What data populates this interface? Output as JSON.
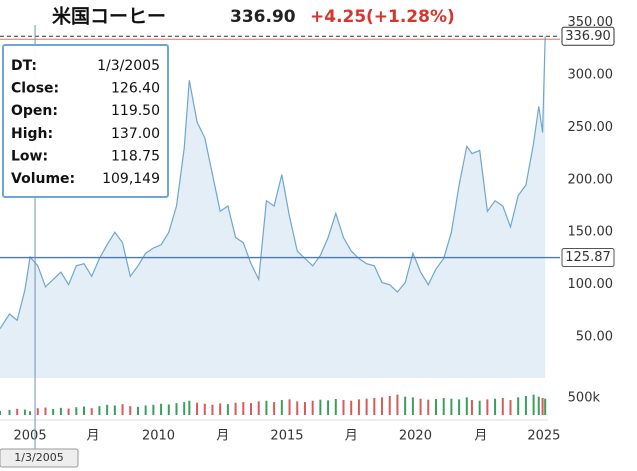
{
  "chart_data": {
    "type": "line",
    "title": "米国コーヒー",
    "last_price": {
      "value": 336.9,
      "label": "336.90"
    },
    "change": "+4.25",
    "change_pct": "(+1.28%)",
    "x": [
      2003.83,
      2004.2,
      2004.5,
      2004.8,
      2005.0,
      2005.3,
      2005.6,
      2005.9,
      2006.2,
      2006.5,
      2006.8,
      2007.1,
      2007.4,
      2007.7,
      2008.0,
      2008.3,
      2008.6,
      2008.9,
      2009.2,
      2009.5,
      2009.8,
      2010.1,
      2010.4,
      2010.7,
      2011.0,
      2011.2,
      2011.5,
      2011.8,
      2012.1,
      2012.4,
      2012.7,
      2013.0,
      2013.3,
      2013.6,
      2013.9,
      2014.2,
      2014.5,
      2014.8,
      2015.1,
      2015.4,
      2015.7,
      2016.0,
      2016.3,
      2016.6,
      2016.9,
      2017.2,
      2017.5,
      2017.8,
      2018.1,
      2018.4,
      2018.7,
      2019.0,
      2019.3,
      2019.6,
      2019.9,
      2020.2,
      2020.5,
      2020.8,
      2021.1,
      2021.4,
      2021.7,
      2022.0,
      2022.2,
      2022.5,
      2022.8,
      2023.1,
      2023.4,
      2023.7,
      2024.0,
      2024.3,
      2024.6,
      2024.8,
      2024.95,
      2025.05
    ],
    "series": [
      {
        "color": "#6fa6cf",
        "fill": "#e4eef6",
        "values": [
          58,
          72,
          66,
          95,
          126.4,
          118,
          98,
          105,
          112,
          100,
          118,
          120,
          108,
          125,
          138,
          150,
          140,
          108,
          118,
          130,
          135,
          138,
          150,
          175,
          230,
          295,
          255,
          240,
          205,
          170,
          175,
          145,
          140,
          120,
          105,
          180,
          175,
          205,
          165,
          132,
          125,
          118,
          128,
          145,
          168,
          145,
          132,
          125,
          120,
          118,
          102,
          100,
          93,
          102,
          130,
          112,
          100,
          115,
          125,
          150,
          195,
          232,
          225,
          228,
          170,
          180,
          175,
          155,
          185,
          195,
          235,
          270,
          245,
          336.9
        ]
      },
      {
        "axis": "y2",
        "type": "bar",
        "up_color": "#3a9e5f",
        "down_color": "#d65a5a",
        "values": [
          120000,
          150000,
          180000,
          160000,
          109149,
          200000,
          220000,
          180000,
          210000,
          190000,
          230000,
          250000,
          200000,
          260000,
          300000,
          280000,
          320000,
          260000,
          240000,
          280000,
          300000,
          330000,
          310000,
          350000,
          380000,
          420000,
          360000,
          330000,
          300000,
          340000,
          320000,
          360000,
          380000,
          350000,
          400000,
          420000,
          380000,
          440000,
          460000,
          400000,
          380000,
          420000,
          450000,
          430000,
          470000,
          440000,
          420000,
          460000,
          480000,
          500000,
          520000,
          560000,
          600000,
          540000,
          520000,
          480000,
          450000,
          470000,
          500000,
          480000,
          460000,
          520000,
          440000,
          420000,
          460000,
          480000,
          500000,
          440000,
          520000,
          560000,
          600000,
          540000,
          500000,
          480000
        ]
      }
    ],
    "xlim": [
      2003.83,
      2025.16
    ],
    "xticks": [
      2005,
      {
        "value": 2007.45,
        "label": "月"
      },
      2010,
      {
        "value": 2012.5,
        "label": "月"
      },
      2015,
      {
        "value": 2017.5,
        "label": "月"
      },
      2020,
      {
        "value": 2022.55,
        "label": "月"
      },
      2025
    ],
    "ylim": [
      11,
      361
    ],
    "yticks": [
      {
        "value": 50,
        "label": "50.00"
      },
      {
        "value": 100,
        "label": "100.00"
      },
      {
        "value": 150,
        "label": "150.00"
      },
      {
        "value": 200,
        "label": "200.00"
      },
      {
        "value": 250,
        "label": "250.00"
      },
      {
        "value": 300,
        "label": "300.00"
      },
      {
        "value": 350,
        "label": "350.00"
      }
    ],
    "y2lim": [
      0,
      1000000
    ],
    "y2ticks": [
      {
        "value": 500000,
        "label": "500k"
      }
    ],
    "crosshair": {
      "x": 2005.0,
      "x_label": "1/3/2005",
      "y": 125.87
    },
    "tooltip": {
      "rows": [
        {
          "label": "DT:",
          "value": "1/3/2005"
        },
        {
          "label": "Close:",
          "value": "126.40"
        },
        {
          "label": "Open:",
          "value": "119.50"
        },
        {
          "label": "High:",
          "value": "137.00"
        },
        {
          "label": "Low:",
          "value": "118.75"
        },
        {
          "label": "Volume:",
          "value": "109,149"
        }
      ]
    }
  }
}
